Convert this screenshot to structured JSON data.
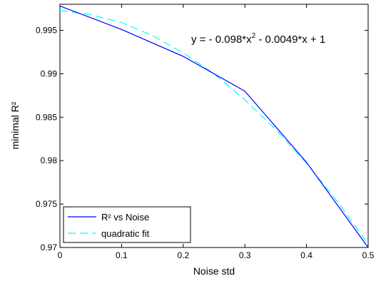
{
  "chart_data": {
    "type": "line",
    "xlabel": "Noise std",
    "ylabel": "minimal R²",
    "xlim": [
      0,
      0.5
    ],
    "ylim": [
      0.97,
      0.998
    ],
    "xticks": [
      0,
      0.1,
      0.2,
      0.3,
      0.4,
      0.5
    ],
    "xtick_labels": [
      "0",
      "0.1",
      "0.2",
      "0.3",
      "0.4",
      "0.5"
    ],
    "yticks": [
      0.97,
      0.975,
      0.98,
      0.985,
      0.99,
      0.995
    ],
    "ytick_labels": [
      "0.97",
      "0.975",
      "0.98",
      "0.985",
      "0.99",
      "0.995"
    ],
    "grid": false,
    "legend_position": "bottom-left",
    "annotation": {
      "prefix": "y = - 0.098*x",
      "superscript": "2",
      "suffix": " - 0.0049*x + 1"
    },
    "series": [
      {
        "name": "R² vs Noise",
        "color": "#0000ff",
        "style": "solid",
        "x": [
          0,
          0.1,
          0.2,
          0.3,
          0.4,
          0.5
        ],
        "y": [
          0.9978,
          0.9951,
          0.992,
          0.988,
          0.9798,
          0.97
        ]
      },
      {
        "name": "quadratic fit",
        "color": "#00ffff",
        "style": "dashed",
        "x": [
          0,
          0.05,
          0.1,
          0.15,
          0.2,
          0.25,
          0.3,
          0.35,
          0.4,
          0.45,
          0.5
        ],
        "y": [
          0.9973,
          0.9968,
          0.9959,
          0.9944,
          0.9924,
          0.99,
          0.987,
          0.9836,
          0.9797,
          0.9753,
          0.9704
        ]
      }
    ]
  }
}
